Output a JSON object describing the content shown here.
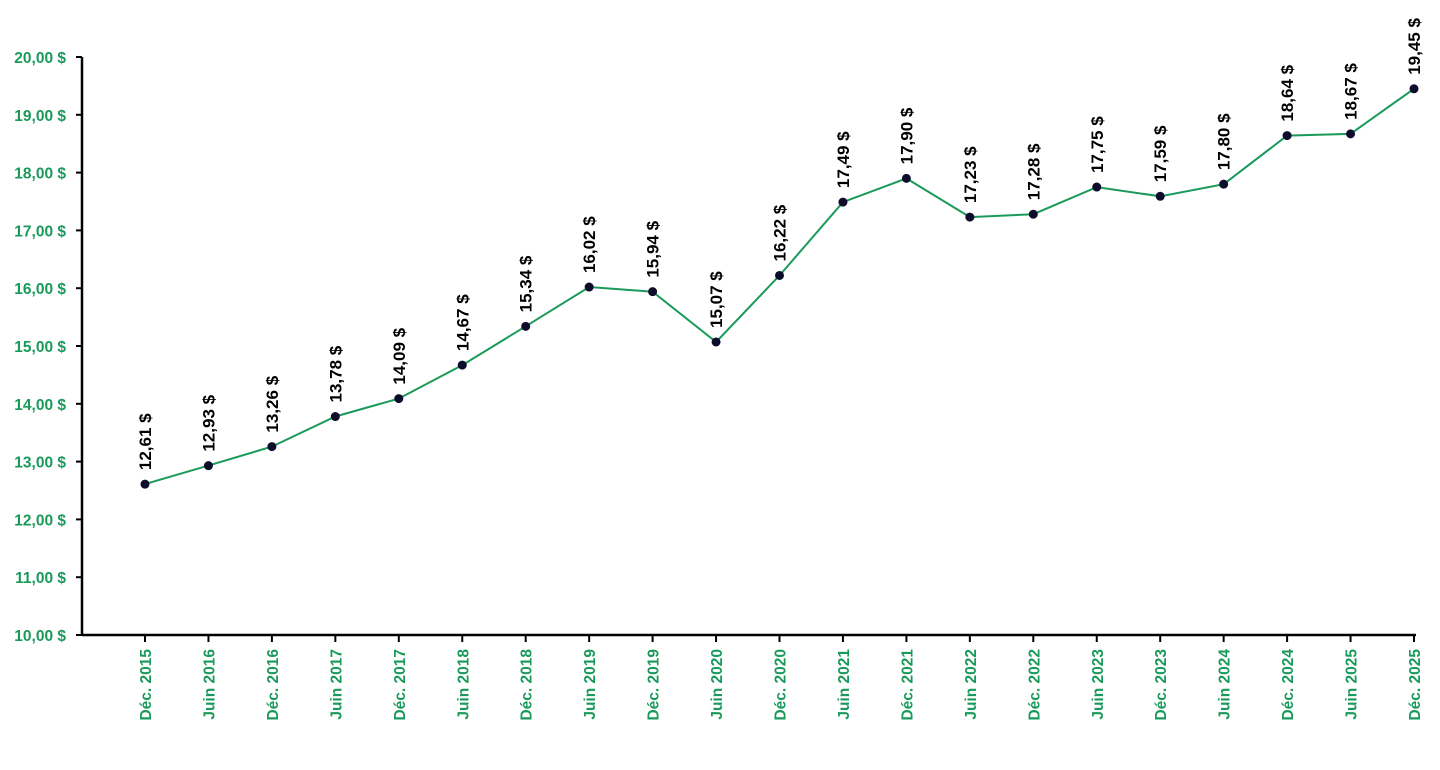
{
  "chart_data": {
    "type": "line",
    "title": "",
    "xlabel": "",
    "ylabel": "",
    "ylim": [
      10,
      20
    ],
    "y_ticks": [
      10,
      11,
      12,
      13,
      14,
      15,
      16,
      17,
      18,
      19,
      20
    ],
    "y_tick_labels": [
      "10,00 $",
      "11,00 $",
      "12,00 $",
      "13,00 $",
      "14,00 $",
      "15,00 $",
      "16,00 $",
      "17,00 $",
      "18,00 $",
      "19,00 $",
      "20,00 $"
    ],
    "grid": false,
    "legend": "none",
    "colors": {
      "line": "#1a9a5a",
      "marker": "#0d0d2b",
      "tick_label": "#1a9a5a",
      "data_label": "#000000",
      "axis": "#000000"
    },
    "categories": [
      "Déc. 2015",
      "Juin 2016",
      "Déc. 2016",
      "Juin 2017",
      "Déc. 2017",
      "Juin 2018",
      "Déc. 2018",
      "Juin 2019",
      "Déc. 2019",
      "Juin 2020",
      "Déc. 2020",
      "Juin 2021",
      "Déc. 2021",
      "Juin 2022",
      "Déc. 2022",
      "Juin 2023",
      "Déc. 2023",
      "Juin 2024",
      "Déc. 2024",
      "Juin 2025",
      "Déc. 2025"
    ],
    "values": [
      12.61,
      12.93,
      13.26,
      13.78,
      14.09,
      14.67,
      15.34,
      16.02,
      15.94,
      15.07,
      16.22,
      17.49,
      17.9,
      17.23,
      17.28,
      17.75,
      17.59,
      17.8,
      18.64,
      18.67,
      19.45
    ],
    "data_labels": [
      "12,61 $",
      "12,93 $",
      "13,26 $",
      "13,78 $",
      "14,09 $",
      "14,67 $",
      "15,34 $",
      "16,02 $",
      "15,94 $",
      "15,07 $",
      "16,22 $",
      "17,49 $",
      "17,90 $",
      "17,23 $",
      "17,28 $",
      "17,75 $",
      "17,59 $",
      "17,80 $",
      "18,64 $",
      "18,67 $",
      "19,45 $"
    ]
  }
}
